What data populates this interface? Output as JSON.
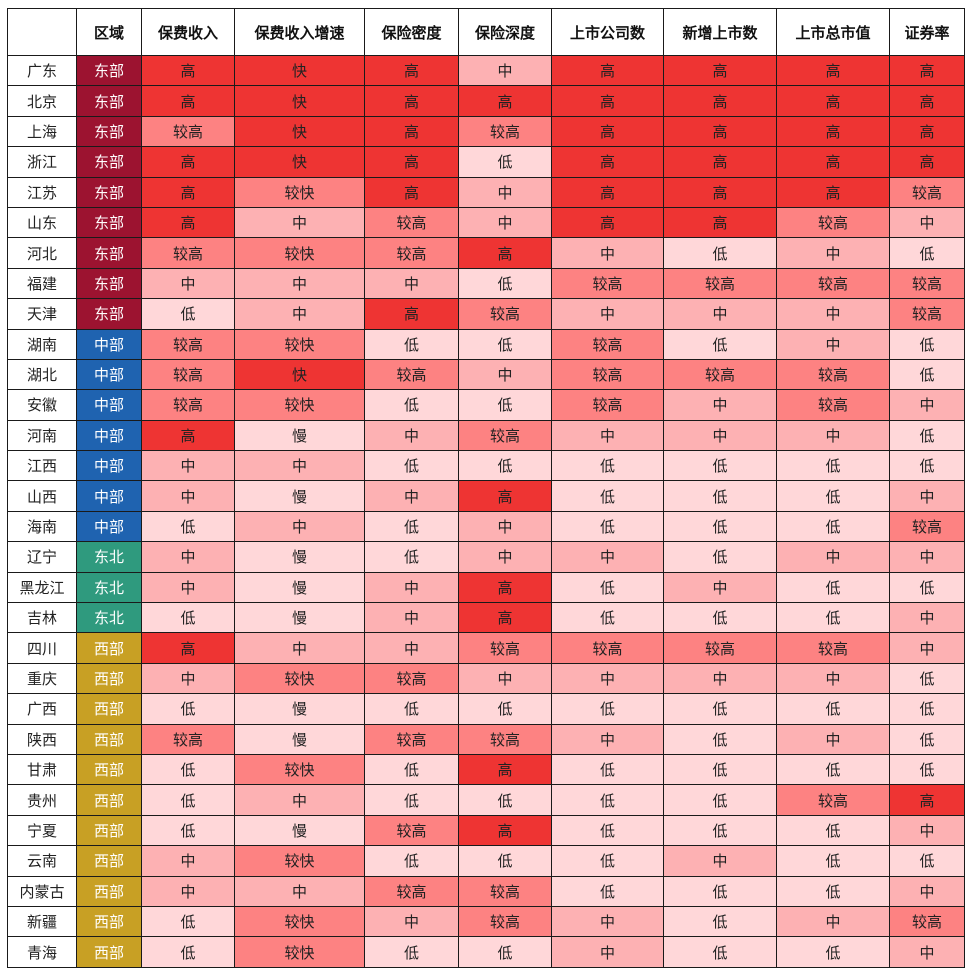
{
  "colors": {
    "region": {
      "东部": "#9c1330",
      "中部": "#1f63b0",
      "东北": "#2f9a7e",
      "西部": "#c8a024"
    },
    "level": {
      "高": "#ee3433",
      "快": "#ee3433",
      "较高": "#fd8282",
      "较快": "#fd8282",
      "中": "#fdb1b3",
      "低": "#ffd7d9",
      "慢": "#ffd7d9"
    }
  },
  "table": {
    "headers": [
      "",
      "区域",
      "保费收入",
      "保费收入增速",
      "保险密度",
      "保险深度",
      "上市公司数",
      "新增上市数",
      "上市总市值",
      "证券率"
    ],
    "rows": [
      [
        "广东",
        "东部",
        "高",
        "快",
        "高",
        "中",
        "高",
        "高",
        "高",
        "高"
      ],
      [
        "北京",
        "东部",
        "高",
        "快",
        "高",
        "高",
        "高",
        "高",
        "高",
        "高"
      ],
      [
        "上海",
        "东部",
        "较高",
        "快",
        "高",
        "较高",
        "高",
        "高",
        "高",
        "高"
      ],
      [
        "浙江",
        "东部",
        "高",
        "快",
        "高",
        "低",
        "高",
        "高",
        "高",
        "高"
      ],
      [
        "江苏",
        "东部",
        "高",
        "较快",
        "高",
        "中",
        "高",
        "高",
        "高",
        "较高"
      ],
      [
        "山东",
        "东部",
        "高",
        "中",
        "较高",
        "中",
        "高",
        "高",
        "较高",
        "中"
      ],
      [
        "河北",
        "东部",
        "较高",
        "较快",
        "较高",
        "高",
        "中",
        "低",
        "中",
        "低"
      ],
      [
        "福建",
        "东部",
        "中",
        "中",
        "中",
        "低",
        "较高",
        "较高",
        "较高",
        "较高"
      ],
      [
        "天津",
        "东部",
        "低",
        "中",
        "高",
        "较高",
        "中",
        "中",
        "中",
        "较高"
      ],
      [
        "湖南",
        "中部",
        "较高",
        "较快",
        "低",
        "低",
        "较高",
        "低",
        "中",
        "低"
      ],
      [
        "湖北",
        "中部",
        "较高",
        "快",
        "较高",
        "中",
        "较高",
        "较高",
        "较高",
        "低"
      ],
      [
        "安徽",
        "中部",
        "较高",
        "较快",
        "低",
        "低",
        "较高",
        "中",
        "较高",
        "中"
      ],
      [
        "河南",
        "中部",
        "高",
        "慢",
        "中",
        "较高",
        "中",
        "中",
        "中",
        "低"
      ],
      [
        "江西",
        "中部",
        "中",
        "中",
        "低",
        "低",
        "低",
        "低",
        "低",
        "低"
      ],
      [
        "山西",
        "中部",
        "中",
        "慢",
        "中",
        "高",
        "低",
        "低",
        "低",
        "中"
      ],
      [
        "海南",
        "中部",
        "低",
        "中",
        "低",
        "中",
        "低",
        "低",
        "低",
        "较高"
      ],
      [
        "辽宁",
        "东北",
        "中",
        "慢",
        "低",
        "中",
        "中",
        "低",
        "中",
        "中"
      ],
      [
        "黑龙江",
        "东北",
        "中",
        "慢",
        "中",
        "高",
        "低",
        "中",
        "低",
        "低"
      ],
      [
        "吉林",
        "东北",
        "低",
        "慢",
        "中",
        "高",
        "低",
        "低",
        "低",
        "中"
      ],
      [
        "四川",
        "西部",
        "高",
        "中",
        "中",
        "较高",
        "较高",
        "较高",
        "较高",
        "中"
      ],
      [
        "重庆",
        "西部",
        "中",
        "较快",
        "较高",
        "中",
        "中",
        "中",
        "中",
        "低"
      ],
      [
        "广西",
        "西部",
        "低",
        "慢",
        "低",
        "低",
        "低",
        "低",
        "低",
        "低"
      ],
      [
        "陕西",
        "西部",
        "较高",
        "慢",
        "较高",
        "较高",
        "中",
        "低",
        "中",
        "低"
      ],
      [
        "甘肃",
        "西部",
        "低",
        "较快",
        "低",
        "高",
        "低",
        "低",
        "低",
        "低"
      ],
      [
        "贵州",
        "西部",
        "低",
        "中",
        "低",
        "低",
        "低",
        "低",
        "较高",
        "高"
      ],
      [
        "宁夏",
        "西部",
        "低",
        "慢",
        "较高",
        "高",
        "低",
        "低",
        "低",
        "中"
      ],
      [
        "云南",
        "西部",
        "中",
        "较快",
        "低",
        "低",
        "低",
        "中",
        "低",
        "低"
      ],
      [
        "内蒙古",
        "西部",
        "中",
        "中",
        "较高",
        "较高",
        "低",
        "低",
        "低",
        "中"
      ],
      [
        "新疆",
        "西部",
        "低",
        "较快",
        "中",
        "较高",
        "中",
        "低",
        "中",
        "较高"
      ],
      [
        "青海",
        "西部",
        "低",
        "较快",
        "低",
        "低",
        "中",
        "低",
        "低",
        "中"
      ]
    ]
  }
}
